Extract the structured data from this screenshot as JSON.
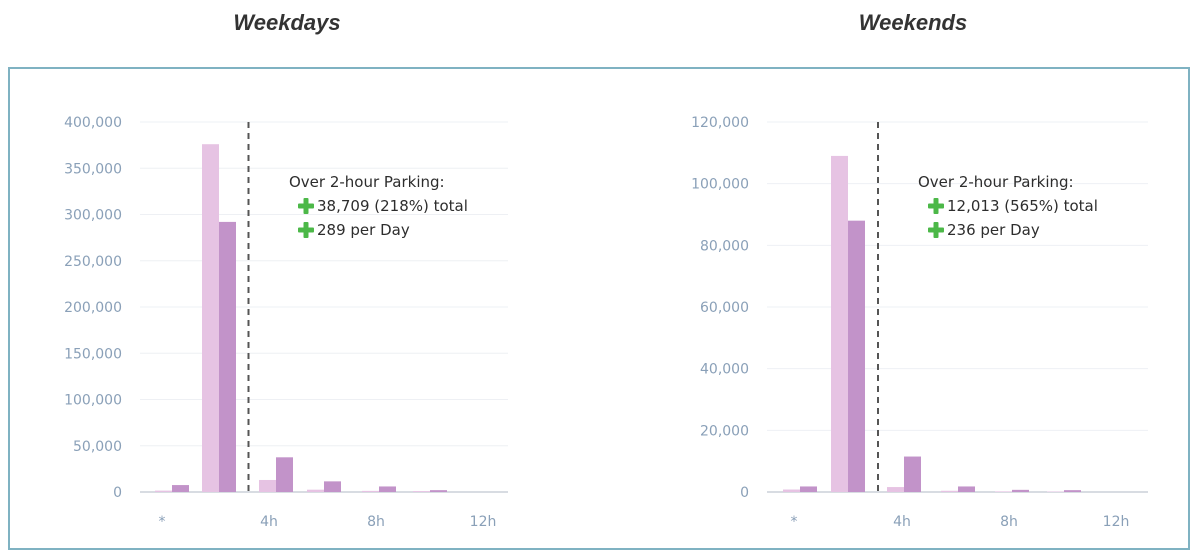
{
  "headings": {
    "left": "Weekdays",
    "right": "Weekends"
  },
  "colors": {
    "series_light": "#e6c3e3",
    "series_dark": "#c293c9",
    "plus": "#4cb848",
    "grid": "#eef0f4",
    "axis": "#b0b8c4",
    "frame": "#7fb2c2",
    "divider": "#555555"
  },
  "icons": {
    "plus": "plus-icon"
  },
  "chart_data": [
    {
      "type": "bar",
      "title": "Weekdays",
      "ylim": [
        0,
        400000
      ],
      "yticks": [
        "0",
        "50,000",
        "100,000",
        "150,000",
        "200,000",
        "250,000",
        "300,000",
        "350,000",
        "400,000"
      ],
      "x_tick_labels": [
        "*",
        "4h",
        "8h",
        "12h"
      ],
      "divider_after_group": 2,
      "grid": true,
      "groups": 6,
      "series": [
        {
          "values": [
            1500,
            376000,
            13000,
            2500,
            1200,
            1000
          ]
        },
        {
          "values": [
            7500,
            292000,
            37500,
            11500,
            6000,
            2000
          ]
        }
      ],
      "annotation": {
        "title": "Over 2-hour Parking:",
        "lines": [
          "38,709 (218%) total",
          "289 per Day"
        ]
      }
    },
    {
      "type": "bar",
      "title": "Weekends",
      "ylim": [
        0,
        120000
      ],
      "yticks": [
        "0",
        "20,000",
        "40,000",
        "60,000",
        "80,000",
        "100,000",
        "120,000"
      ],
      "x_tick_labels": [
        "*",
        "4h",
        "8h",
        "12h"
      ],
      "divider_after_group": 2,
      "grid": true,
      "groups": 6,
      "series": [
        {
          "values": [
            800,
            109000,
            1600,
            400,
            200,
            150
          ]
        },
        {
          "values": [
            1800,
            88000,
            11500,
            1800,
            700,
            600
          ]
        }
      ],
      "annotation": {
        "title": "Over 2-hour Parking:",
        "lines": [
          "12,013 (565%) total",
          "236 per Day"
        ]
      }
    }
  ]
}
